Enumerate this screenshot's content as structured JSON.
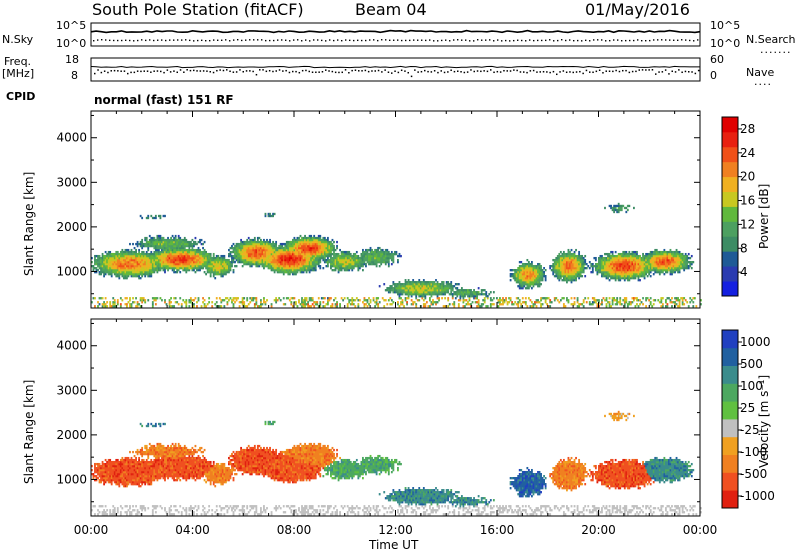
{
  "header": {
    "station": "South Pole Station (fitACF)",
    "beam": "Beam 04",
    "date": "01/May/2016"
  },
  "small_panels": {
    "nsky_label": "N.Sky",
    "nsearch_label": "N.Search",
    "freq_label_1": "Freq.",
    "freq_label_2": "[MHz]",
    "nave_label": "Nave",
    "cpid_label": "CPID",
    "cpid_value": "normal (fast) 151 RF",
    "noise_ticks_left": [
      "10^5",
      "10^0"
    ],
    "noise_ticks_right": [
      "10^5",
      "10^0"
    ],
    "freq_ticks": [
      "18",
      "8"
    ],
    "nave_ticks": [
      "60",
      "0"
    ]
  },
  "colors": {
    "power_scale": [
      "#1420e0",
      "#2a3bb0",
      "#1e5a96",
      "#3c8c64",
      "#4ca060",
      "#60b83c",
      "#c8c820",
      "#f0b020",
      "#f08020",
      "#f05018",
      "#e82010",
      "#e00000"
    ],
    "velocity_scale": [
      "#2040c0",
      "#2060a0",
      "#3a8c8c",
      "#4ca860",
      "#60c040",
      "#c0c0c0",
      "#f0a020",
      "#f08020",
      "#f05020",
      "#e02010"
    ]
  },
  "chart_data": [
    {
      "type": "heatmap",
      "title": "Power",
      "xlabel": "Time UT",
      "ylabel": "Slant Range [km]",
      "x_ticks": [
        "00:00",
        "04:00",
        "08:00",
        "12:00",
        "16:00",
        "20:00",
        "00:00"
      ],
      "y_ticks": [
        "1000",
        "2000",
        "3000",
        "4000"
      ],
      "ylim": [
        180,
        4600
      ],
      "colorbar_label": "Power [dB]",
      "colorbar_ticks": [
        "4",
        "8",
        "12",
        "16",
        "20",
        "24",
        "28"
      ],
      "colorbar_range": [
        0,
        30
      ]
    },
    {
      "type": "heatmap",
      "title": "Velocity",
      "xlabel": "Time UT",
      "ylabel": "Slant Range [km]",
      "x_ticks": [
        "00:00",
        "04:00",
        "08:00",
        "12:00",
        "16:00",
        "20:00",
        "00:00"
      ],
      "y_ticks": [
        "1000",
        "2000",
        "3000",
        "4000"
      ],
      "ylim": [
        180,
        4600
      ],
      "colorbar_label": "Velocity [m s⁻¹]",
      "colorbar_ticks": [
        "1000",
        "500",
        "100",
        "25",
        "-25",
        "-100",
        "-500",
        "-1000"
      ]
    }
  ]
}
